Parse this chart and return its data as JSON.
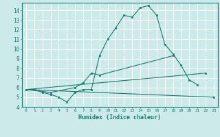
{
  "xlabel": "Humidex (Indice chaleur)",
  "background_color": "#cceaea",
  "grid_color": "#ffffff",
  "line_color": "#1a7a6e",
  "xlim": [
    -0.5,
    23.5
  ],
  "ylim": [
    4,
    14.8
  ],
  "xticks": [
    0,
    1,
    2,
    3,
    4,
    5,
    6,
    7,
    8,
    9,
    10,
    11,
    12,
    13,
    14,
    15,
    16,
    17,
    18,
    19,
    20,
    21,
    22,
    23
  ],
  "yticks": [
    4,
    5,
    6,
    7,
    8,
    9,
    10,
    11,
    12,
    13,
    14
  ],
  "series1_x": [
    0,
    1,
    2,
    3,
    4,
    5,
    6,
    7,
    8,
    9,
    10,
    11,
    12,
    13,
    14,
    15,
    16,
    17,
    18,
    19,
    20,
    21
  ],
  "series1_y": [
    5.8,
    5.8,
    5.5,
    5.3,
    5.0,
    4.5,
    5.5,
    5.8,
    5.8,
    9.3,
    11.0,
    12.2,
    13.5,
    13.3,
    14.3,
    14.5,
    13.5,
    10.5,
    9.5,
    8.3,
    6.8,
    6.3
  ],
  "series2_x": [
    0,
    3,
    6,
    7,
    8,
    9,
    18
  ],
  "series2_y": [
    5.8,
    5.5,
    6.0,
    6.5,
    7.5,
    7.3,
    9.3
  ],
  "series3_x": [
    0,
    22
  ],
  "series3_y": [
    5.8,
    7.5
  ],
  "series4_x": [
    0,
    23
  ],
  "series4_y": [
    5.8,
    5.0
  ]
}
